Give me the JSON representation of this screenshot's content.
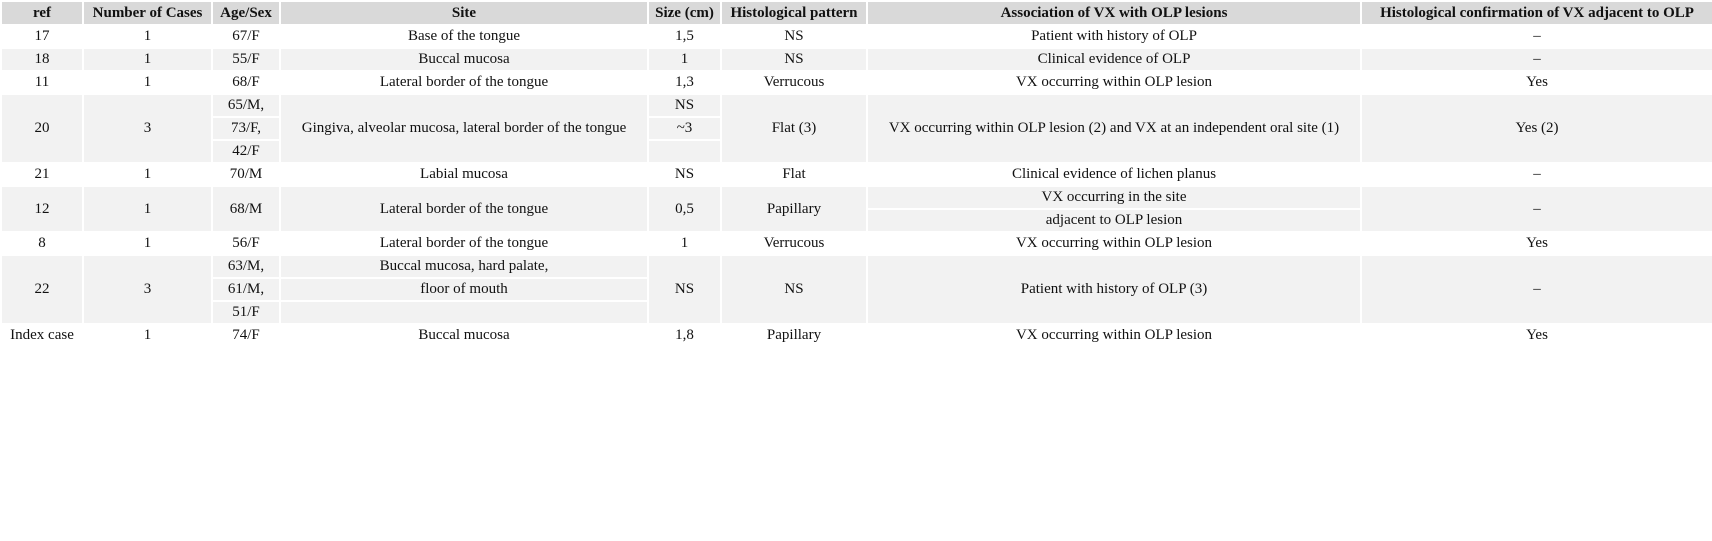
{
  "table": {
    "header": [
      "ref",
      "Number of Cases",
      "Age/Sex",
      "Site",
      "Size (cm)",
      "Histological pattern",
      "Association of VX with OLP lesions",
      "Histological confirmation of VX adjacent to OLP"
    ],
    "rows": [
      [
        "17",
        "1",
        "67/F",
        "Base of the tongue",
        "1,5",
        "NS",
        "Patient with history of OLP",
        "–"
      ],
      [
        "18",
        "1",
        "55/F",
        "Buccal mucosa",
        "1",
        "NS",
        "Clinical evidence of OLP",
        "–"
      ],
      [
        "11",
        "1",
        "68/F",
        "Lateral border of the tongue",
        "1,3",
        "Verrucous",
        "VX occurring within OLP lesion",
        "Yes"
      ],
      [
        "20",
        "3",
        [
          "65/M,",
          "73/F,",
          "42/F"
        ],
        "Gingiva, alveolar mucosa, lateral border of the tongue",
        [
          "NS",
          "~3"
        ],
        "Flat (3)",
        "VX occurring within OLP lesion (2) and VX at an independent oral site (1)",
        "Yes (2)"
      ],
      [
        "21",
        "1",
        "70/M",
        "Labial mucosa",
        "NS",
        "Flat",
        "Clinical evidence of lichen planus",
        "–"
      ],
      [
        "12",
        "1",
        "68/M",
        "Lateral border of the tongue",
        "0,5",
        "Papillary",
        [
          "VX occurring in the site",
          "adjacent to OLP lesion"
        ],
        "–"
      ],
      [
        "8",
        "1",
        "56/F",
        "Lateral border of the tongue",
        "1",
        "Verrucous",
        "VX occurring within OLP lesion",
        "Yes"
      ],
      [
        "22",
        "3",
        [
          "63/M,",
          "61/M,",
          "51/F"
        ],
        [
          "Buccal mucosa, hard palate,",
          "floor of mouth"
        ],
        "NS",
        "NS",
        "Patient with history of OLP (3)",
        "–"
      ],
      [
        "Index case",
        "1",
        "74/F",
        "Buccal mucosa",
        "1,8",
        "Papillary",
        "VX occurring within OLP lesion",
        "Yes"
      ]
    ]
  }
}
